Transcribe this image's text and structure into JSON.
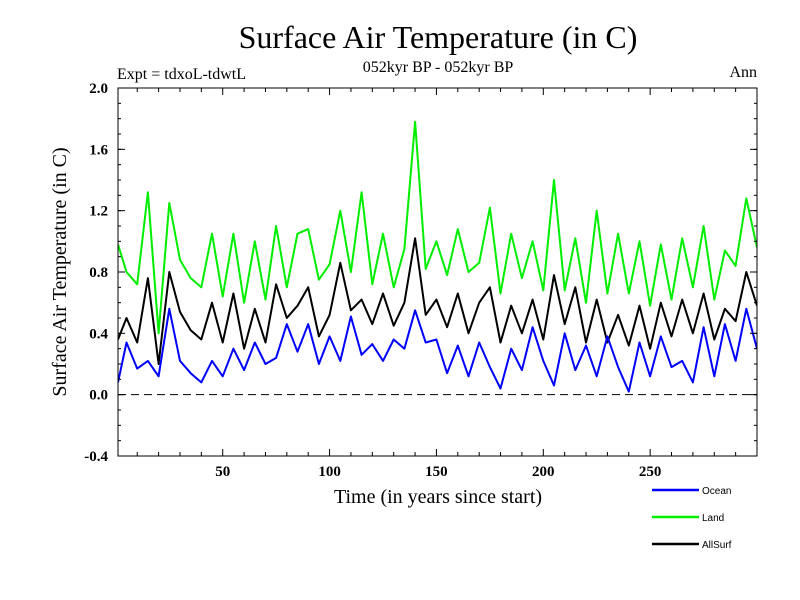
{
  "chart_data": {
    "type": "line",
    "title": "Surface Air Temperature (in C)",
    "subtitle_left": "Expt = tdxoL-tdwtL",
    "subtitle_center": "052kyr BP - 052kyr BP",
    "subtitle_right": "Ann",
    "xlabel": "Time (in years since start)",
    "ylabel": "Surface Air Temperature (in C)",
    "xlim": [
      1,
      300
    ],
    "ylim": [
      -0.4,
      2.0
    ],
    "xticks": [
      50,
      100,
      150,
      200,
      250
    ],
    "yticks": [
      -0.4,
      0.0,
      0.4,
      0.8,
      1.2,
      1.6,
      2.0
    ],
    "ytick_labels": [
      "-0.4",
      "0.0",
      "0.4",
      "0.8",
      "1.2",
      "1.6",
      "2.0"
    ],
    "zero_line": {
      "y": 0.0,
      "style": "dashed"
    },
    "legend_placement": "below-right",
    "x": [
      1,
      5,
      10,
      15,
      20,
      25,
      30,
      35,
      40,
      45,
      50,
      55,
      60,
      65,
      70,
      75,
      80,
      85,
      90,
      95,
      100,
      105,
      110,
      115,
      120,
      125,
      130,
      135,
      140,
      145,
      150,
      155,
      160,
      165,
      170,
      175,
      180,
      185,
      190,
      195,
      200,
      205,
      210,
      215,
      220,
      225,
      230,
      235,
      240,
      245,
      250,
      255,
      260,
      265,
      270,
      275,
      280,
      285,
      290,
      295,
      300
    ],
    "series": [
      {
        "name": "Ocean",
        "color": "#0000ff",
        "values": [
          0.08,
          0.34,
          0.17,
          0.22,
          0.12,
          0.56,
          0.22,
          0.14,
          0.08,
          0.22,
          0.12,
          0.3,
          0.16,
          0.34,
          0.2,
          0.24,
          0.46,
          0.28,
          0.46,
          0.2,
          0.38,
          0.22,
          0.51,
          0.26,
          0.33,
          0.22,
          0.36,
          0.3,
          0.55,
          0.34,
          0.36,
          0.14,
          0.32,
          0.12,
          0.34,
          0.18,
          0.04,
          0.3,
          0.16,
          0.44,
          0.22,
          0.06,
          0.4,
          0.16,
          0.32,
          0.12,
          0.38,
          0.18,
          0.02,
          0.34,
          0.12,
          0.38,
          0.18,
          0.22,
          0.08,
          0.44,
          0.12,
          0.46,
          0.22,
          0.56,
          0.3
        ]
      },
      {
        "name": "Land",
        "color": "#00ee00",
        "values": [
          0.98,
          0.8,
          0.72,
          1.32,
          0.4,
          1.25,
          0.88,
          0.76,
          0.7,
          1.05,
          0.64,
          1.05,
          0.6,
          1.0,
          0.62,
          1.1,
          0.7,
          1.05,
          1.08,
          0.75,
          0.85,
          1.2,
          0.8,
          1.32,
          0.72,
          1.05,
          0.7,
          0.95,
          1.78,
          0.82,
          1.0,
          0.78,
          1.08,
          0.8,
          0.86,
          1.22,
          0.66,
          1.05,
          0.76,
          1.0,
          0.68,
          1.4,
          0.68,
          1.02,
          0.6,
          1.2,
          0.66,
          1.05,
          0.66,
          1.0,
          0.58,
          0.98,
          0.62,
          1.02,
          0.7,
          1.1,
          0.62,
          0.94,
          0.84,
          1.28,
          0.96
        ]
      },
      {
        "name": "AllSurf",
        "color": "#000000",
        "values": [
          0.36,
          0.5,
          0.34,
          0.76,
          0.2,
          0.8,
          0.54,
          0.42,
          0.36,
          0.6,
          0.34,
          0.66,
          0.3,
          0.56,
          0.34,
          0.72,
          0.5,
          0.58,
          0.7,
          0.38,
          0.52,
          0.86,
          0.55,
          0.62,
          0.46,
          0.66,
          0.45,
          0.6,
          1.02,
          0.52,
          0.62,
          0.44,
          0.66,
          0.4,
          0.6,
          0.7,
          0.34,
          0.58,
          0.4,
          0.62,
          0.36,
          0.78,
          0.46,
          0.7,
          0.34,
          0.62,
          0.34,
          0.52,
          0.32,
          0.58,
          0.3,
          0.6,
          0.38,
          0.62,
          0.4,
          0.66,
          0.36,
          0.56,
          0.48,
          0.8,
          0.58
        ]
      }
    ]
  }
}
